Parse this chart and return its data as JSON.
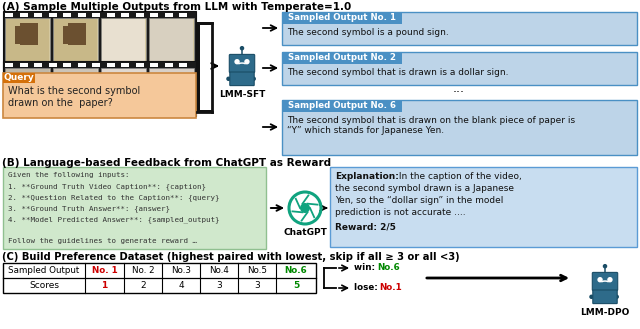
{
  "title_A": "(A) Sample Multiple Outputs from LLM with Temperate=1.0",
  "title_B": "(B) Language-based Feedback from ChatGPT as Reward",
  "title_C": "(C) Build Preference Dataset (highest paired with lowest, skip if all ≥ 3 or all <3)",
  "lmm_sft_label": "LMM-SFT",
  "lmm_dpo_label": "LMM-DPO",
  "chatgpt_label": "ChatGPT",
  "query_label": "Query",
  "query_text": "What is the second symbol\ndrawn on the  paper?",
  "output1_title": "Sampled Output No. 1",
  "output1_text": "The second symbol is a pound sign.",
  "output2_title": "Sampled Output No. 2",
  "output2_text": "The second symbol that is drawn is a dollar sign.",
  "output3_title": "Sampled Output No. 6",
  "output3_text": "The second symbol that is drawn on the blank piece of paper is\n“Y” which stands for Japanese Yen.",
  "dots": "...",
  "table_headers": [
    "Sampled Output",
    "No. 1",
    "No. 2",
    "No.3",
    "No.4",
    "No.5",
    "No.6"
  ],
  "table_scores": [
    "Scores",
    "1",
    "2",
    "4",
    "3",
    "3",
    "5"
  ],
  "bg_color": "#ffffff",
  "output_box_color": "#bdd4e8",
  "output_title_bg": "#4a90c4",
  "query_box_color": "#f5c89a",
  "query_label_color": "#d4700a",
  "green_box_color": "#d0e8cc",
  "blue_box_color": "#c8ddf0",
  "table_border_color": "#000000",
  "red_color": "#cc0000",
  "green_color": "#008800",
  "robot_color": "#2e6b8a",
  "robot_dark": "#1a4d66",
  "robot_light": "#4a90b8"
}
